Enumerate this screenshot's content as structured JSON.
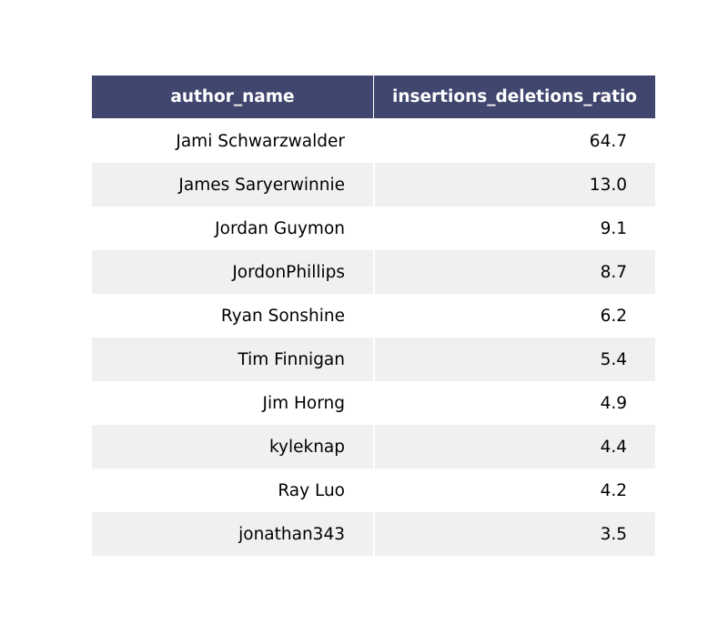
{
  "chart_data": {
    "type": "table",
    "columns": [
      "author_name",
      "insertions_deletions_ratio"
    ],
    "rows": [
      [
        "Jami Schwarzwalder",
        "64.7"
      ],
      [
        "James Saryerwinnie",
        "13.0"
      ],
      [
        "Jordan Guymon",
        "9.1"
      ],
      [
        "JordonPhillips",
        "8.7"
      ],
      [
        "Ryan Sonshine",
        "6.2"
      ],
      [
        "Tim Finnigan",
        "5.4"
      ],
      [
        "Jim Horng",
        "4.9"
      ],
      [
        "kyleknap",
        "4.4"
      ],
      [
        "Ray Luo",
        "4.2"
      ],
      [
        "jonathan343",
        "3.5"
      ]
    ]
  },
  "colors": {
    "header_background": "#40466e",
    "header_text": "#ffffff",
    "row_stripe": "#f0f0f0",
    "row_plain": "#ffffff"
  }
}
